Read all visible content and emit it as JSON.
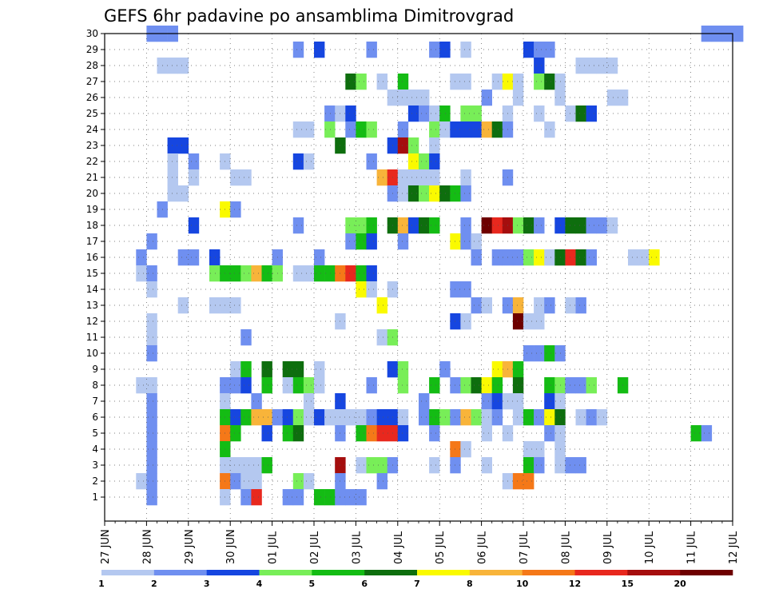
{
  "chart_data": {
    "type": "heatmap",
    "title": "GEFS 6hr padavine po ansamblima Dimitrovgrad",
    "xlabel": "",
    "ylabel": "",
    "y_ticks": [
      "1",
      "2",
      "3",
      "4",
      "5",
      "6",
      "7",
      "8",
      "9",
      "10",
      "11",
      "12",
      "13",
      "14",
      "15",
      "16",
      "17",
      "18",
      "19",
      "20",
      "21",
      "22",
      "23",
      "24",
      "25",
      "26",
      "27",
      "28",
      "29",
      "30"
    ],
    "x_ticks": [
      "27 JUN",
      "28 JUN",
      "29 JUN",
      "30 JUN",
      "01 JUL",
      "02 JUL",
      "03 JUL",
      "04 JUL",
      "05 JUL",
      "06 JUL",
      "07 JUL",
      "08 JUL",
      "09 JUL",
      "10 JUL",
      "11 JUL",
      "12 JUL"
    ],
    "time_steps_per_day": 4,
    "grid": "dotted",
    "colorbar": {
      "ticks": [
        "1",
        "2",
        "3",
        "4",
        "5",
        "6",
        "7",
        "8",
        "10",
        "12",
        "15",
        "20"
      ],
      "colors": [
        "#b4c8f0",
        "#6f8ff0",
        "#1646e0",
        "#78ee58",
        "#14bc14",
        "#0e6e0e",
        "#fafa00",
        "#f8b43a",
        "#f57818",
        "#e8281e",
        "#a50e0e",
        "#6e0000"
      ]
    },
    "cell_encoding": "each row is one ensemble member [member, step, category-index, step, category-index, ...]; step = 6h steps after 27 JUN 00Z; category index 0..11 into colorbar.colors",
    "cells": [
      [
        30,
        4,
        1,
        5,
        1,
        6,
        1,
        57,
        1,
        58,
        1,
        59,
        1,
        60,
        1
      ],
      [
        29,
        18,
        1,
        20,
        2,
        25,
        1,
        31,
        1,
        32,
        2,
        34,
        0,
        40,
        2,
        41,
        1,
        42,
        1
      ],
      [
        28,
        5,
        0,
        6,
        0,
        7,
        0,
        41,
        2,
        45,
        0,
        46,
        0,
        47,
        0,
        48,
        0
      ],
      [
        27,
        23,
        5,
        24,
        3,
        26,
        0,
        28,
        4,
        33,
        0,
        34,
        0,
        37,
        0,
        38,
        6,
        39,
        0,
        41,
        3,
        42,
        5,
        43,
        0
      ],
      [
        26,
        27,
        0,
        28,
        0,
        29,
        0,
        30,
        0,
        36,
        1,
        39,
        0,
        43,
        0,
        48,
        0,
        49,
        0
      ],
      [
        25,
        21,
        1,
        22,
        0,
        23,
        2,
        29,
        2,
        30,
        1,
        31,
        0,
        32,
        4,
        34,
        3,
        35,
        3,
        38,
        0,
        41,
        0,
        44,
        0,
        45,
        5,
        46,
        2
      ],
      [
        24,
        18,
        0,
        19,
        0,
        21,
        3,
        23,
        1,
        24,
        4,
        25,
        3,
        28,
        1,
        31,
        3,
        32,
        0,
        33,
        2,
        34,
        2,
        35,
        2,
        36,
        7,
        37,
        5,
        38,
        1,
        42,
        0
      ],
      [
        23,
        6,
        2,
        7,
        2,
        22,
        5,
        27,
        2,
        28,
        10,
        29,
        3,
        31,
        0
      ],
      [
        22,
        6,
        0,
        8,
        1,
        11,
        0,
        18,
        2,
        19,
        0,
        25,
        1,
        29,
        6,
        30,
        3,
        31,
        2
      ],
      [
        21,
        6,
        0,
        8,
        0,
        12,
        0,
        13,
        0,
        26,
        7,
        27,
        9,
        28,
        0,
        29,
        0,
        30,
        0,
        31,
        0,
        34,
        0,
        38,
        1
      ],
      [
        20,
        6,
        0,
        7,
        0,
        27,
        1,
        28,
        0,
        29,
        5,
        30,
        3,
        31,
        6,
        32,
        5,
        33,
        4,
        34,
        1
      ],
      [
        19,
        5,
        1,
        11,
        6,
        12,
        1
      ],
      [
        18,
        8,
        2,
        18,
        1,
        23,
        3,
        24,
        3,
        25,
        4,
        27,
        5,
        28,
        7,
        29,
        2,
        30,
        5,
        31,
        4,
        34,
        1,
        36,
        11,
        37,
        9,
        38,
        10,
        39,
        3,
        40,
        5,
        41,
        1,
        43,
        2,
        44,
        5,
        45,
        5,
        46,
        1,
        47,
        1,
        48,
        0
      ],
      [
        17,
        4,
        1,
        23,
        1,
        24,
        4,
        25,
        2,
        28,
        1,
        33,
        6,
        34,
        1,
        35,
        0
      ],
      [
        16,
        3,
        1,
        7,
        1,
        8,
        1,
        10,
        2,
        16,
        1,
        20,
        1,
        35,
        1,
        37,
        1,
        38,
        1,
        39,
        1,
        40,
        3,
        41,
        6,
        42,
        0,
        43,
        5,
        44,
        9,
        45,
        5,
        46,
        1,
        50,
        0,
        51,
        0,
        52,
        6
      ],
      [
        15,
        3,
        0,
        4,
        1,
        10,
        3,
        11,
        4,
        12,
        4,
        13,
        3,
        14,
        7,
        15,
        4,
        16,
        3,
        18,
        0,
        19,
        0,
        20,
        4,
        21,
        4,
        22,
        8,
        23,
        9,
        24,
        4,
        25,
        2
      ],
      [
        14,
        4,
        0,
        24,
        6,
        25,
        0,
        27,
        0,
        33,
        1,
        34,
        1
      ],
      [
        13,
        7,
        0,
        10,
        0,
        11,
        0,
        12,
        0,
        26,
        6,
        35,
        1,
        36,
        0,
        38,
        1,
        39,
        7,
        41,
        0,
        42,
        1,
        44,
        0,
        45,
        1
      ],
      [
        12,
        4,
        0,
        22,
        0,
        33,
        2,
        34,
        0,
        39,
        11,
        40,
        0,
        41,
        0
      ],
      [
        11,
        4,
        0,
        13,
        1,
        26,
        0,
        27,
        3
      ],
      [
        10,
        4,
        1,
        40,
        1,
        41,
        1,
        42,
        4,
        43,
        1
      ],
      [
        9,
        12,
        0,
        13,
        4,
        15,
        5,
        17,
        5,
        18,
        5,
        20,
        0,
        27,
        2,
        28,
        3,
        32,
        1,
        37,
        6,
        38,
        7,
        39,
        4
      ],
      [
        8,
        3,
        0,
        4,
        0,
        11,
        1,
        12,
        1,
        13,
        2,
        15,
        4,
        17,
        0,
        18,
        4,
        19,
        3,
        20,
        0,
        25,
        1,
        28,
        3,
        31,
        4,
        33,
        1,
        34,
        3,
        35,
        5,
        36,
        6,
        37,
        4,
        39,
        5,
        42,
        4,
        43,
        3,
        44,
        1,
        45,
        1,
        46,
        3,
        49,
        4
      ],
      [
        7,
        4,
        1,
        11,
        0,
        14,
        1,
        19,
        0,
        22,
        2,
        30,
        1,
        36,
        1,
        37,
        2,
        38,
        0,
        39,
        0,
        42,
        2,
        43,
        0
      ],
      [
        6,
        4,
        1,
        11,
        4,
        12,
        2,
        13,
        4,
        14,
        7,
        15,
        7,
        16,
        1,
        17,
        2,
        18,
        3,
        19,
        0,
        20,
        2,
        21,
        0,
        22,
        0,
        23,
        0,
        24,
        0,
        25,
        1,
        26,
        2,
        27,
        2,
        28,
        0,
        30,
        1,
        31,
        4,
        32,
        3,
        33,
        1,
        34,
        7,
        35,
        3,
        36,
        0,
        37,
        1,
        39,
        0,
        40,
        4,
        41,
        1,
        42,
        6,
        43,
        5,
        45,
        0,
        46,
        1,
        47,
        0
      ],
      [
        5,
        4,
        1,
        11,
        8,
        12,
        4,
        15,
        2,
        17,
        4,
        18,
        5,
        22,
        1,
        24,
        4,
        25,
        8,
        26,
        9,
        27,
        9,
        28,
        2,
        31,
        1,
        36,
        0,
        38,
        0,
        42,
        1,
        43,
        0,
        56,
        4,
        57,
        1
      ],
      [
        4,
        4,
        1,
        11,
        4,
        33,
        8,
        34,
        0,
        40,
        0,
        41,
        0,
        43,
        0
      ],
      [
        3,
        4,
        1,
        11,
        0,
        12,
        0,
        13,
        0,
        14,
        0,
        15,
        4,
        22,
        10,
        24,
        0,
        25,
        3,
        26,
        3,
        27,
        1,
        31,
        0,
        33,
        1,
        36,
        0,
        40,
        4,
        41,
        1,
        43,
        0,
        44,
        1,
        45,
        1
      ],
      [
        2,
        3,
        0,
        4,
        1,
        11,
        8,
        12,
        1,
        13,
        0,
        14,
        0,
        18,
        3,
        19,
        0,
        22,
        1,
        26,
        1,
        38,
        0,
        39,
        8,
        40,
        8
      ],
      [
        1,
        4,
        1,
        11,
        0,
        13,
        1,
        14,
        9,
        17,
        1,
        18,
        1,
        20,
        4,
        21,
        4,
        22,
        1,
        23,
        1,
        24,
        1
      ]
    ]
  }
}
